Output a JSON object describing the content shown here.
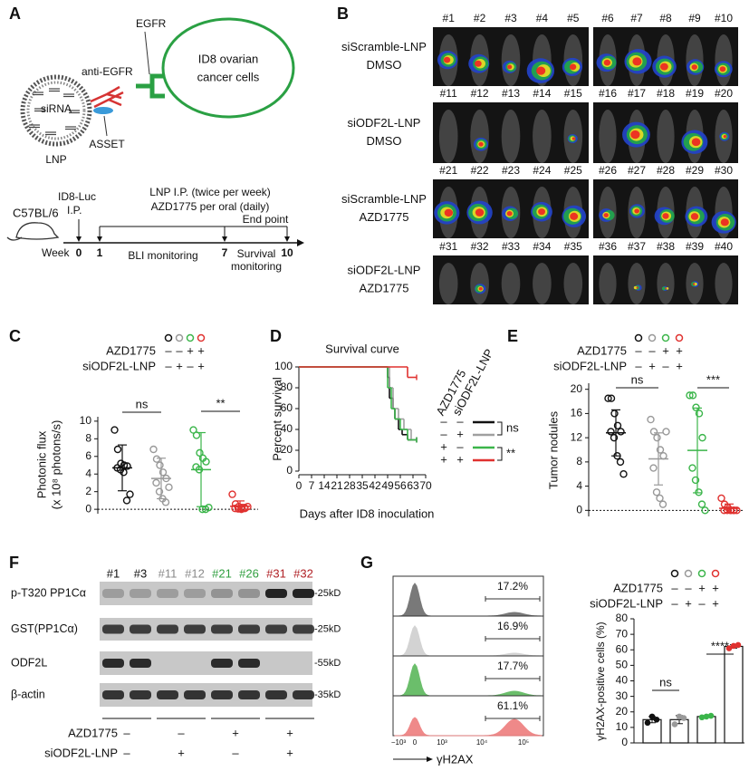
{
  "figure": {
    "panel_labels": [
      "A",
      "B",
      "C",
      "D",
      "E",
      "F",
      "G"
    ],
    "a": {
      "lnp_texts": [
        "siRNA",
        "LNP",
        "anti-EGFR",
        "EGFR",
        "ASSET"
      ],
      "cell_lines": [
        "ID8 ovarian",
        "cancer cells"
      ],
      "cell_color": "#2aa043",
      "timeline": {
        "mouse": "C57BL/6",
        "axis_label": "Week",
        "xlim": [
          0,
          10
        ],
        "ticks": [
          0,
          1,
          7,
          10
        ],
        "injection": [
          "ID8-Luc",
          "I.P."
        ],
        "treatment": [
          "LNP I.P. (twice per week)",
          "AZD1775 per oral (daily)"
        ],
        "end": "End point",
        "bli": "BLI monitoring",
        "survival": [
          "Survival",
          "monitoring"
        ]
      }
    },
    "b": {
      "rows": [
        {
          "labels": [
            "siScramble-LNP",
            "DMSO"
          ],
          "mice": [
            "#1",
            "#2",
            "#3",
            "#4",
            "#5",
            "#6",
            "#7",
            "#8",
            "#9",
            "#10"
          ]
        },
        {
          "labels": [
            "siODF2L-LNP",
            "DMSO"
          ],
          "mice": [
            "#11",
            "#12",
            "#13",
            "#14",
            "#15",
            "#16",
            "#17",
            "#18",
            "#19",
            "#20"
          ]
        },
        {
          "labels": [
            "siScramble-LNP",
            "AZD1775"
          ],
          "mice": [
            "#21",
            "#22",
            "#23",
            "#24",
            "#25",
            "#26",
            "#27",
            "#28",
            "#29",
            "#30"
          ]
        },
        {
          "labels": [
            "siODF2L-LNP",
            "AZD1775"
          ],
          "mice": [
            "#31",
            "#32",
            "#33",
            "#34",
            "#35",
            "#36",
            "#37",
            "#38",
            "#39",
            "#40"
          ]
        }
      ]
    },
    "f": {
      "lanes": [
        {
          "label": "#1",
          "color": "#111111"
        },
        {
          "label": "#3",
          "color": "#111111"
        },
        {
          "label": "#11",
          "color": "#8a8a8a"
        },
        {
          "label": "#12",
          "color": "#8a8a8a"
        },
        {
          "label": "#21",
          "color": "#2e9e3e"
        },
        {
          "label": "#26",
          "color": "#2e9e3e"
        },
        {
          "label": "#31",
          "color": "#b02025"
        },
        {
          "label": "#32",
          "color": "#b02025"
        }
      ],
      "rows": [
        "p-T320 PP1Cα",
        "GST(PP1Cα)",
        "ODF2L",
        "β-actin"
      ],
      "markers": [
        "-25kD",
        "-25kD",
        "-55kD",
        "-35kD"
      ],
      "conditions": [
        {
          "name": "AZD1775",
          "signs": [
            "–",
            "–",
            "+",
            "+"
          ]
        },
        {
          "name": "siODF2L-LNP",
          "signs": [
            "–",
            "+",
            "–",
            "+"
          ]
        }
      ]
    },
    "g_hist": {
      "percentages": [
        "17.2%",
        "16.9%",
        "17.7%",
        "61.1%"
      ],
      "colors": [
        "#6b6b6b",
        "#cfcfcf",
        "#5cb85c",
        "#ee7d7d"
      ],
      "xtick_labels": [
        "−10³",
        "0",
        "10³",
        "10⁴",
        "10⁵"
      ],
      "xlabel": "γH2AX"
    }
  },
  "chart_data": [
    {
      "type": "dot",
      "ylabel": [
        "Photonic flux",
        "(x 10⁸ photons/s)"
      ],
      "ylim": [
        -0.5,
        10.5
      ],
      "yticks": [
        0,
        2,
        4,
        6,
        8,
        10
      ],
      "conditions": [
        {
          "name": "AZD1775",
          "signs": [
            "–",
            "–",
            "+",
            "+"
          ]
        },
        {
          "name": "siODF2L-LNP",
          "signs": [
            "–",
            "+",
            "–",
            "+"
          ]
        }
      ],
      "series": [
        {
          "color": "#111111",
          "values": [
            9,
            6.8,
            5.2,
            5,
            4.9,
            4.7,
            4.5,
            4.2,
            1,
            1.7
          ],
          "mean": 4.7,
          "sd": 2.6
        },
        {
          "color": "#999999",
          "values": [
            6.8,
            5.7,
            5,
            4.2,
            3.5,
            3,
            2,
            1.2,
            0.8,
            2.5
          ],
          "mean": 3.5,
          "sd": 2.3
        },
        {
          "color": "#3bb54a",
          "values": [
            9,
            8.4,
            6.4,
            5.8,
            5.4,
            4.8,
            4.5,
            0,
            0,
            0.2
          ],
          "mean": 4.5,
          "sd": 4.2
        },
        {
          "color": "#e0312f",
          "values": [
            1.7,
            0.6,
            0.3,
            0.2,
            0.1,
            0.1,
            0.05,
            0,
            0.2,
            0.3
          ],
          "mean": 0.35,
          "sd": 0.6
        }
      ],
      "annotations": [
        "ns",
        "**"
      ]
    },
    {
      "type": "survival",
      "title": "Survival curve",
      "xlabel": "Days after ID8 inoculation",
      "ylabel": "Percent survival",
      "xlim": [
        0,
        70
      ],
      "xticks": [
        0,
        7,
        14,
        21,
        28,
        35,
        42,
        49,
        56,
        63,
        70
      ],
      "ylim": [
        0,
        100
      ],
      "yticks": [
        0,
        20,
        40,
        60,
        80,
        100
      ],
      "legend_headers": [
        "AZD1775",
        "siODF2L-LNP"
      ],
      "series": [
        {
          "color": "#111111",
          "signs": [
            "–",
            "–"
          ],
          "x": [
            0,
            49,
            50,
            52,
            53,
            55,
            57,
            60,
            65
          ],
          "values": [
            100,
            90,
            70,
            60,
            50,
            40,
            35,
            30,
            30
          ]
        },
        {
          "color": "#a0a0a0",
          "signs": [
            "–",
            "+"
          ],
          "x": [
            0,
            50,
            52,
            55,
            58,
            62,
            65
          ],
          "values": [
            100,
            80,
            60,
            50,
            40,
            30,
            30
          ]
        },
        {
          "color": "#3bb54a",
          "signs": [
            "+",
            "–"
          ],
          "x": [
            0,
            49,
            51,
            53,
            56,
            60,
            65
          ],
          "values": [
            100,
            80,
            60,
            50,
            40,
            30,
            30
          ]
        },
        {
          "color": "#e0312f",
          "signs": [
            "+",
            "+"
          ],
          "x": [
            0,
            60,
            65
          ],
          "values": [
            100,
            90,
            90
          ]
        }
      ],
      "annotations": [
        "ns",
        "**"
      ]
    },
    {
      "type": "dot",
      "ylabel": [
        "Tumor nodules"
      ],
      "ylim": [
        -1,
        21
      ],
      "yticks": [
        0,
        4,
        8,
        12,
        16,
        20
      ],
      "conditions": [
        {
          "name": "AZD1775",
          "signs": [
            "–",
            "–",
            "+",
            "+"
          ]
        },
        {
          "name": "siODF2L-LNP",
          "signs": [
            "–",
            "+",
            "–",
            "+"
          ]
        }
      ],
      "series": [
        {
          "color": "#111111",
          "values": [
            18.5,
            18.5,
            16,
            14,
            13,
            13,
            12,
            9,
            8,
            6
          ],
          "mean": 12.8,
          "sd": 3.8
        },
        {
          "color": "#999999",
          "values": [
            15,
            13,
            12,
            10,
            9,
            7,
            3,
            2,
            1,
            13
          ],
          "mean": 8.5,
          "sd": 4.3
        },
        {
          "color": "#3bb54a",
          "values": [
            19,
            19,
            17,
            16,
            12,
            7,
            5,
            3,
            1,
            0
          ],
          "mean": 9.9,
          "sd": 7
        },
        {
          "color": "#e0312f",
          "values": [
            2,
            1,
            0.5,
            0,
            0,
            0,
            0,
            0,
            0,
            0
          ],
          "mean": 0.35,
          "sd": 0.7
        }
      ],
      "annotations": [
        "ns",
        "***"
      ]
    },
    {
      "type": "bar",
      "ylabel": "γH2AX-positive cells (%)",
      "ylim": [
        0,
        80
      ],
      "yticks": [
        0,
        10,
        20,
        30,
        40,
        50,
        60,
        70,
        80
      ],
      "conditions": [
        {
          "name": "AZD1775",
          "signs": [
            "–",
            "–",
            "+",
            "+"
          ]
        },
        {
          "name": "siODF2L-LNP",
          "signs": [
            "–",
            "+",
            "–",
            "+"
          ]
        }
      ],
      "series": [
        {
          "color": "#111111",
          "value": 15,
          "error": 2,
          "points": [
            13,
            17,
            15
          ]
        },
        {
          "color": "#999999",
          "value": 15,
          "error": 2.6,
          "points": [
            12,
            17,
            16
          ]
        },
        {
          "color": "#3bb54a",
          "value": 17,
          "error": 0.5,
          "points": [
            16.5,
            17,
            17.5
          ]
        },
        {
          "color": "#e0312f",
          "value": 62.2,
          "error": 1.1,
          "points": [
            61,
            62.5,
            63.1
          ]
        }
      ],
      "annotations": [
        "ns",
        "****"
      ]
    }
  ]
}
